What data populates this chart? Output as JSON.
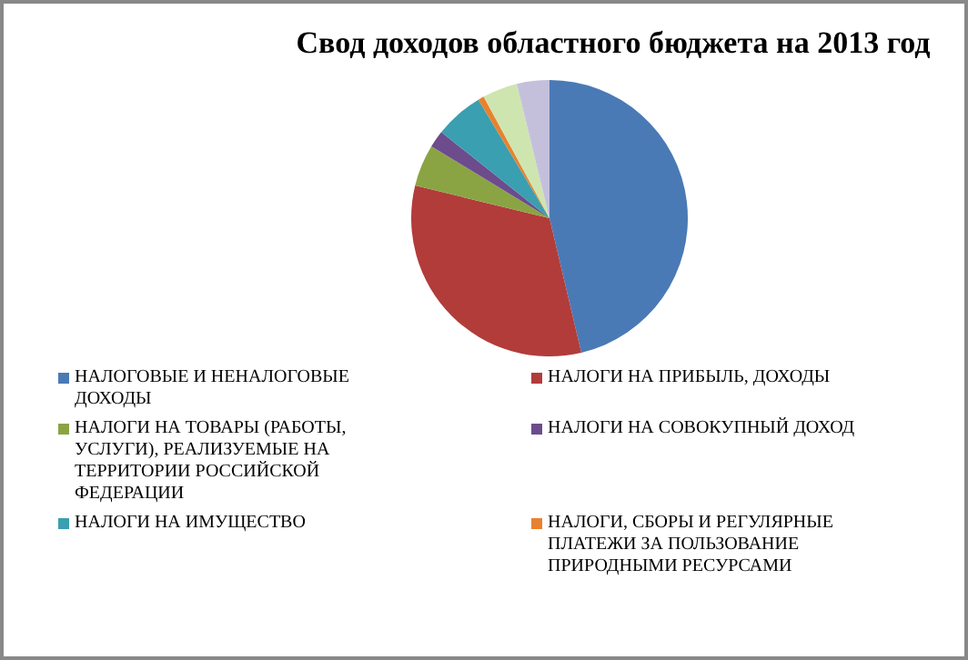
{
  "chart_data": {
    "type": "pie",
    "title": "Свод доходов областного бюджета на 2013 год",
    "categories": [
      "НАЛОГОВЫЕ И НЕНАЛОГОВЫЕ ДОХОДЫ",
      "НАЛОГИ НА ПРИБЫЛЬ, ДОХОДЫ",
      "НАЛОГИ НА ТОВАРЫ (РАБОТЫ, УСЛУГИ), РЕАЛИЗУЕМЫЕ НА ТЕРРИТОРИИ РОССИЙСКОЙ ФЕДЕРАЦИИ",
      "НАЛОГИ НА СОВОКУПНЫЙ ДОХОД",
      "НАЛОГИ НА ИМУЩЕСТВО",
      "НАЛОГИ, СБОРЫ И РЕГУЛЯРНЫЕ ПЛАТЕЖИ ЗА ПОЛЬЗОВАНИЕ ПРИРОДНЫМИ РЕСУРСАМИ",
      null,
      null
    ],
    "values": [
      46.3,
      32.5,
      4.9,
      2,
      5.7,
      0.7,
      4.1,
      3.8
    ],
    "colors": [
      "#4a7ab5",
      "#b23c3a",
      "#8aa444",
      "#6c4c8c",
      "#3a9fb0",
      "#e8822e",
      "#cfe5b0",
      "#c4c0dc"
    ],
    "legend": "bottom"
  }
}
